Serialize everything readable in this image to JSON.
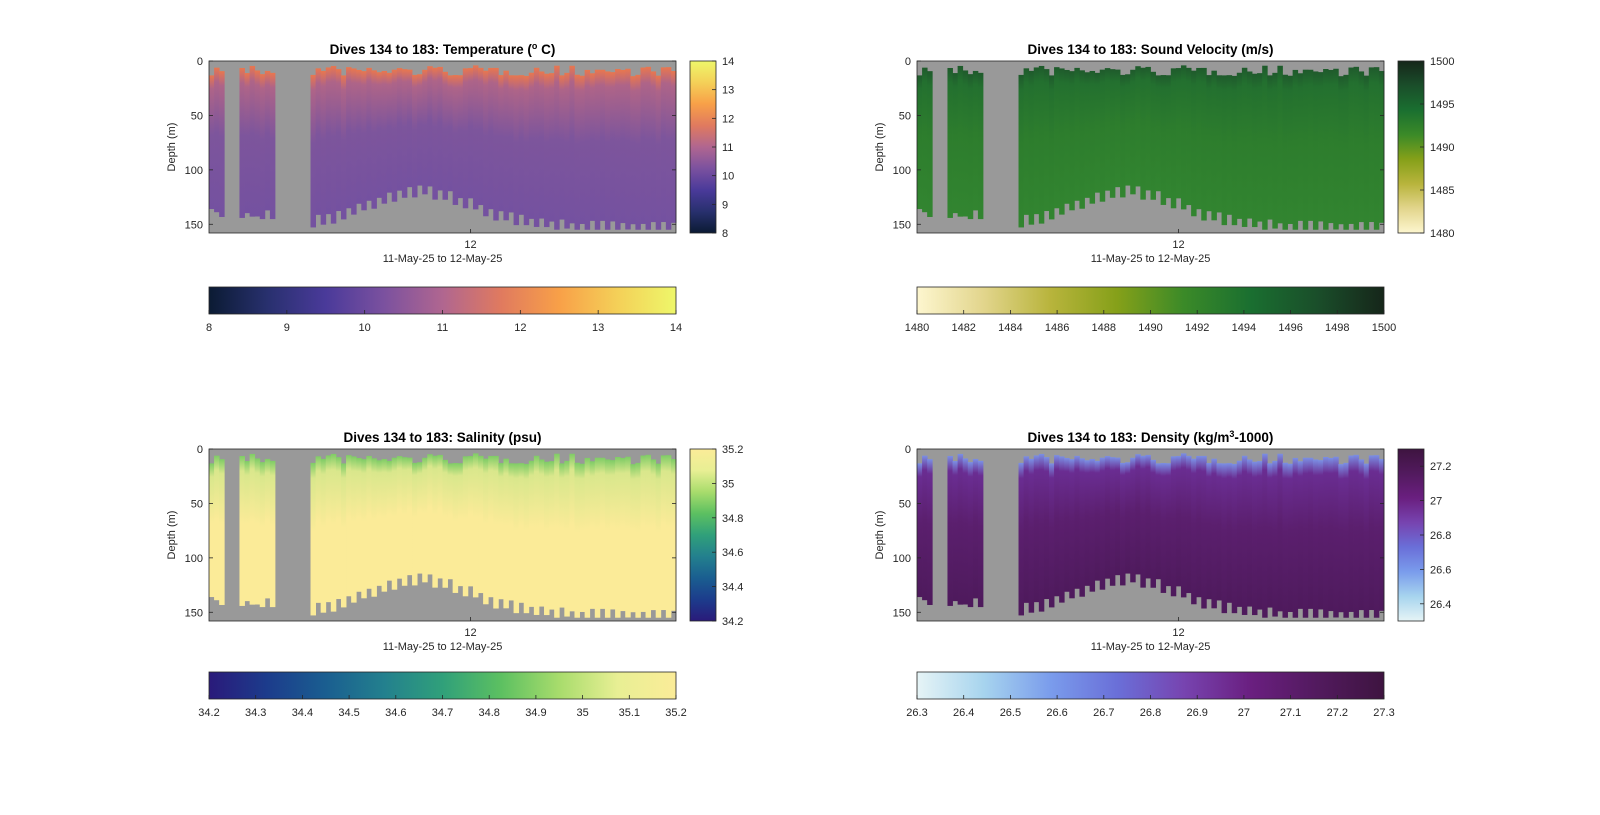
{
  "chart_data": [
    {
      "type": "heatmap",
      "title_prefix": "Dives 134 to 183: Temperature (",
      "title_sup": "o",
      "title_suffix": " C)",
      "xlabel": "11-May-25 to 12-May-25",
      "ylabel": "Depth (m)",
      "x_tick_labels": [
        "12"
      ],
      "ylim": [
        0,
        158
      ],
      "y_ticks": [
        0,
        50,
        100,
        150
      ],
      "clim": [
        8,
        14
      ],
      "colorbar_right_ticks": [
        8,
        9,
        10,
        11,
        12,
        13,
        14
      ],
      "colorbar_bottom_ticks": [
        "8",
        "9",
        "10",
        "11",
        "12",
        "13",
        "14"
      ],
      "colormap": [
        "#0b1b33",
        "#28306e",
        "#4a3a9a",
        "#7b519f",
        "#b06690",
        "#e07a5f",
        "#f8a048",
        "#f4d058",
        "#eef76a"
      ],
      "field_colors": {
        "surface": "#e8774f",
        "top": "#ae6488",
        "body": "#7d559c",
        "deep": "#7451a0"
      },
      "no_data_color": "#999999"
    },
    {
      "type": "heatmap",
      "title_prefix": "Dives 134 to 183: Sound Velocity (m/s)",
      "title_sup": "",
      "title_suffix": "",
      "xlabel": "11-May-25 to 12-May-25",
      "ylabel": "Depth (m)",
      "x_tick_labels": [
        "12"
      ],
      "ylim": [
        0,
        158
      ],
      "y_ticks": [
        0,
        50,
        100,
        150
      ],
      "clim": [
        1480,
        1500
      ],
      "colorbar_right_ticks": [
        1480,
        1485,
        1490,
        1495,
        1500
      ],
      "colorbar_bottom_ticks": [
        "1480",
        "1482",
        "1484",
        "1486",
        "1488",
        "1490",
        "1492",
        "1494",
        "1496",
        "1498",
        "1500"
      ],
      "colormap": [
        "#fdf6cf",
        "#e2d58c",
        "#b8b43c",
        "#85a019",
        "#3b8a28",
        "#1a6f30",
        "#1a4e2a",
        "#16261a"
      ],
      "field_colors": {
        "surface": "#1f5a2c",
        "top": "#23702f",
        "body": "#2d7d2d",
        "deep": "#328530"
      },
      "no_data_color": "#999999"
    },
    {
      "type": "heatmap",
      "title_prefix": "Dives 134 to 183: Salinity (psu)",
      "title_sup": "",
      "title_suffix": "",
      "xlabel": "11-May-25 to 12-May-25",
      "ylabel": "Depth (m)",
      "x_tick_labels": [
        "12"
      ],
      "ylim": [
        0,
        158
      ],
      "y_ticks": [
        0,
        50,
        100,
        150
      ],
      "clim": [
        34.2,
        35.2
      ],
      "colorbar_right_ticks": [
        34.2,
        34.4,
        34.6,
        34.8,
        35,
        35.2
      ],
      "colorbar_bottom_ticks": [
        "34.2",
        "34.3",
        "34.4",
        "34.5",
        "34.6",
        "34.7",
        "34.8",
        "34.9",
        "35",
        "35.1",
        "35.2"
      ],
      "colormap": [
        "#2a1a7a",
        "#1c3c8c",
        "#1a5e90",
        "#23808e",
        "#30a07a",
        "#5cc061",
        "#a8dc6c",
        "#e8ef94",
        "#fbec98"
      ],
      "field_colors": {
        "surface": "#7fcc66",
        "top": "#d9e78c",
        "body": "#fbeb98",
        "deep": "#fbeb98"
      },
      "no_data_color": "#999999"
    },
    {
      "type": "heatmap",
      "title_prefix": "Dives 134 to 183: Density (kg/m",
      "title_sup": "3",
      "title_suffix": "-1000)",
      "xlabel": "11-May-25 to 12-May-25",
      "ylabel": "Depth (m)",
      "x_tick_labels": [
        "12"
      ],
      "ylim": [
        0,
        158
      ],
      "y_ticks": [
        0,
        50,
        100,
        150
      ],
      "clim": [
        26.3,
        27.3
      ],
      "colorbar_right_ticks": [
        26.4,
        26.6,
        26.8,
        27,
        27.2
      ],
      "colorbar_bottom_ticks": [
        "26.3",
        "26.4",
        "26.5",
        "26.6",
        "26.7",
        "26.8",
        "26.9",
        "27",
        "27.1",
        "27.2",
        "27.3"
      ],
      "colormap": [
        "#e6f4f6",
        "#a7d4ee",
        "#7a9cec",
        "#6a6fd8",
        "#7744b0",
        "#6a1f80",
        "#521a5e",
        "#3e1440"
      ],
      "field_colors": {
        "surface": "#7b8fe4",
        "top": "#6a2d92",
        "body": "#5b1f6e",
        "deep": "#4e1a5c"
      },
      "no_data_color": "#999999"
    }
  ]
}
